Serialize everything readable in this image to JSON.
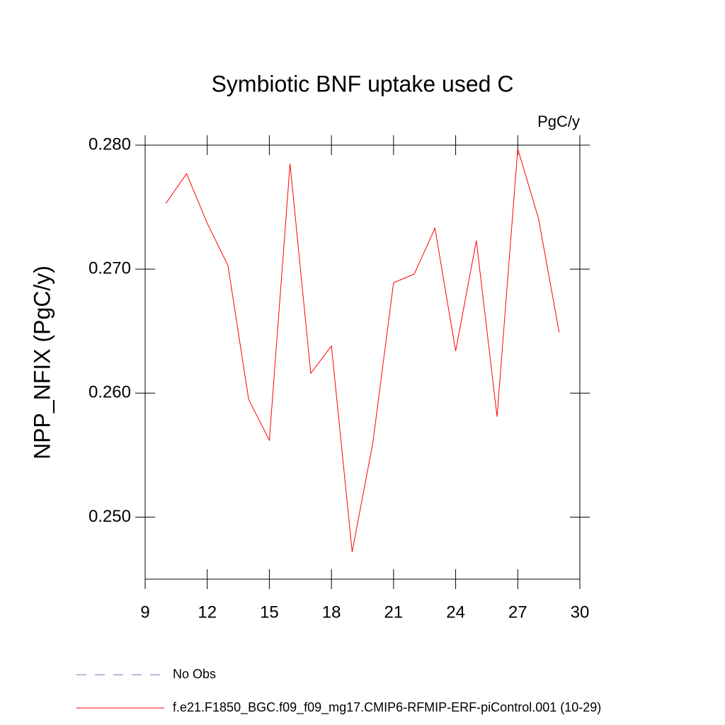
{
  "chart_data": {
    "type": "line",
    "title": "Symbiotic BNF uptake used C",
    "units": "PgC/y",
    "y_label": "NPP_NFIX  (PgC/y)",
    "x": [
      10,
      11,
      12,
      13,
      14,
      15,
      16,
      17,
      18,
      19,
      20,
      21,
      22,
      23,
      24,
      25,
      26,
      27,
      28,
      29
    ],
    "series": [
      {
        "name": "f.e21.F1850_BGC.f09_f09_mg17.CMIP6-RFMIP-ERF-piControl.001 (10-29)",
        "color": "#ff0000",
        "values": [
          0.2753,
          0.2777,
          0.2737,
          0.2703,
          0.2595,
          0.2562,
          0.2785,
          0.2616,
          0.2638,
          0.2472,
          0.256,
          0.2689,
          0.2696,
          0.2733,
          0.2634,
          0.2723,
          0.2581,
          0.2797,
          0.2741,
          0.2649
        ]
      }
    ],
    "legend": [
      {
        "label": "No Obs",
        "color": "#7b6fc4",
        "style": "dashed"
      }
    ],
    "xlim": [
      9,
      30
    ],
    "xticks": [
      9,
      12,
      15,
      18,
      21,
      24,
      27,
      30
    ],
    "ylim": [
      0.245,
      0.28
    ],
    "yticks": [
      {
        "value": 0.25,
        "label": "0.250"
      },
      {
        "value": 0.26,
        "label": "0.260"
      },
      {
        "value": 0.27,
        "label": "0.270"
      },
      {
        "value": 0.28,
        "label": "0.280"
      }
    ]
  }
}
